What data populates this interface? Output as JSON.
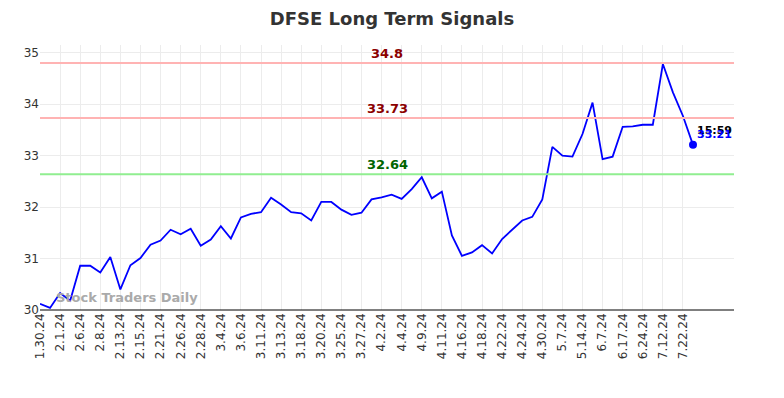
{
  "chart_data": {
    "type": "line",
    "title": "DFSE Long Term Signals",
    "watermark": "Stock Traders Daily",
    "categories": [
      "1.30.24",
      null,
      "2.1.24",
      null,
      "2.6.24",
      null,
      "2.8.24",
      null,
      "2.13.24",
      null,
      "2.15.24",
      null,
      "2.21.24",
      null,
      "2.26.24",
      null,
      "2.28.24",
      null,
      "3.4.24",
      null,
      "3.6.24",
      null,
      "3.11.24",
      null,
      "3.13.24",
      null,
      "3.18.24",
      null,
      "3.20.24",
      null,
      "3.25.24",
      null,
      "3.27.24",
      null,
      "4.2.24",
      null,
      "4.4.24",
      null,
      "4.9.24",
      null,
      "4.11.24",
      null,
      "4.16.24",
      null,
      "4.18.24",
      null,
      "4.22.24",
      null,
      "4.24.24",
      null,
      "4.30.24",
      null,
      "5.7.24",
      null,
      "5.14.24",
      null,
      "6.7.24",
      null,
      "6.17.24",
      null,
      "6.24.24",
      null,
      "7.12.24",
      null,
      "7.22.24",
      null
    ],
    "values": [
      30.12,
      30.04,
      30.33,
      30.18,
      30.86,
      30.86,
      30.73,
      31.03,
      30.4,
      30.87,
      31.01,
      31.27,
      31.35,
      31.56,
      31.47,
      31.58,
      31.25,
      31.37,
      31.63,
      31.39,
      31.8,
      31.87,
      31.9,
      32.18,
      32.05,
      31.9,
      31.88,
      31.74,
      32.1,
      32.1,
      31.95,
      31.85,
      31.89,
      32.15,
      32.19,
      32.24,
      32.16,
      32.35,
      32.58,
      32.17,
      32.3,
      31.45,
      31.05,
      31.12,
      31.26,
      31.1,
      31.38,
      31.57,
      31.74,
      31.81,
      32.15,
      33.17,
      33.0,
      32.98,
      33.42,
      34.03,
      32.93,
      32.98,
      33.56,
      33.57,
      33.6,
      33.6,
      34.78,
      34.23,
      33.77,
      33.21
    ],
    "color": "#0000ff",
    "ylim": [
      30,
      35.15
    ],
    "yticks": [
      30,
      31,
      32,
      33,
      34,
      35
    ],
    "grid": true,
    "reference_lines": [
      {
        "value": 34.8,
        "color": "#ffb3b3",
        "text_color": "#8b0000"
      },
      {
        "value": 33.73,
        "color": "#ffb3b3",
        "text_color": "#8b0000"
      },
      {
        "value": 32.64,
        "color": "#90ee90",
        "text_color": "#006400"
      }
    ],
    "last_point": {
      "time": "15:59",
      "value": 33.21
    }
  }
}
